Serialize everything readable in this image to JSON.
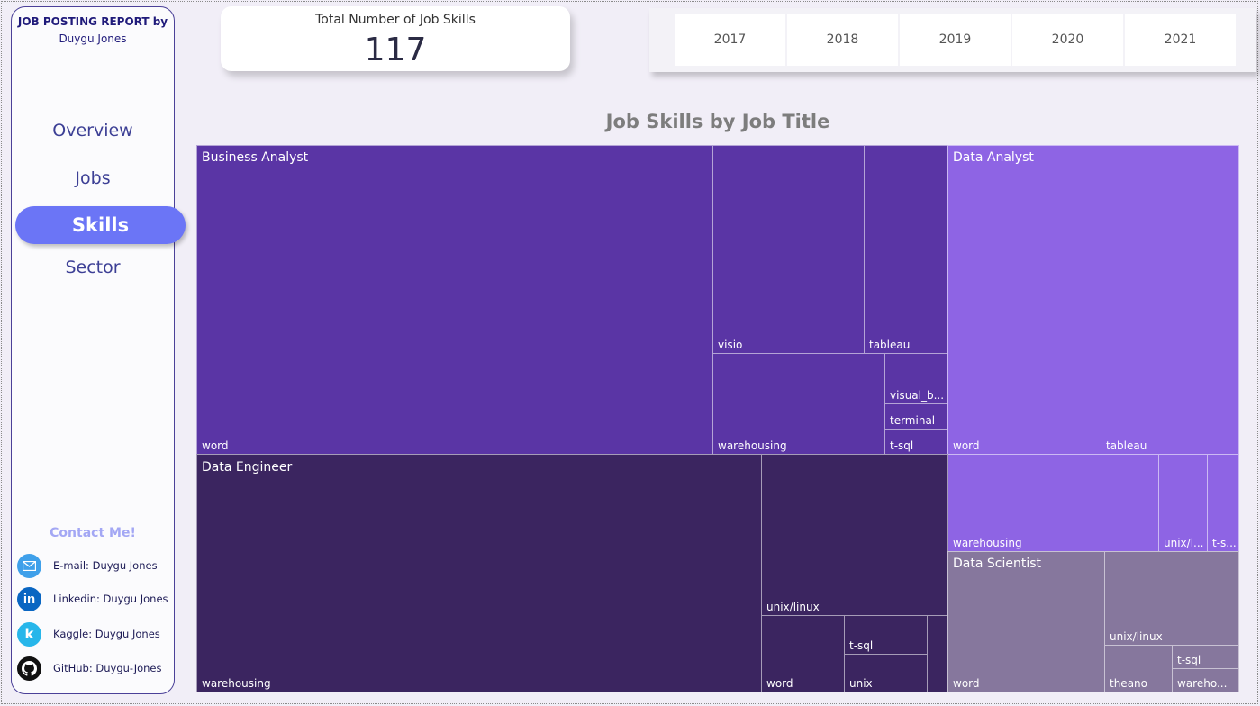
{
  "sidebar": {
    "report_title": "JOB POSTING REPORT by",
    "report_author": "Duygu Jones",
    "nav": {
      "overview": "Overview",
      "jobs": "Jobs",
      "skills": "Skills",
      "sector": "Sector"
    },
    "contact_title": "Contact Me!",
    "contacts": {
      "email": "E-mail: Duygu Jones",
      "linkedin": "Linkedin: Duygu Jones",
      "kaggle": "Kaggle: Duygu Jones",
      "github": "GitHub: Duygu-Jones"
    }
  },
  "kpi": {
    "label": "Total Number of Job Skills",
    "value": "117"
  },
  "years": [
    "2017",
    "2018",
    "2019",
    "2020",
    "2021"
  ],
  "chart_data": {
    "type": "treemap",
    "title": "Job Skills by Job Title",
    "groups": [
      {
        "name": "Business Analyst",
        "color": "#5a35a5",
        "skills": [
          "word",
          "visio",
          "tableau",
          "warehousing",
          "visual_b...",
          "terminal",
          "t-sql"
        ]
      },
      {
        "name": "Data Analyst",
        "color": "#8e64e4",
        "skills": [
          "word",
          "tableau",
          "warehousing",
          "unix/l...",
          "t-s..."
        ]
      },
      {
        "name": "Data Engineer",
        "color": "#3b2560",
        "skills": [
          "warehousing",
          "unix/linux",
          "word",
          "t-sql",
          "unix"
        ]
      },
      {
        "name": "Data Scientist",
        "color": "#86779d",
        "skills": [
          "word",
          "unix/linux",
          "theano",
          "t-sql",
          "wareho..."
        ]
      }
    ]
  }
}
